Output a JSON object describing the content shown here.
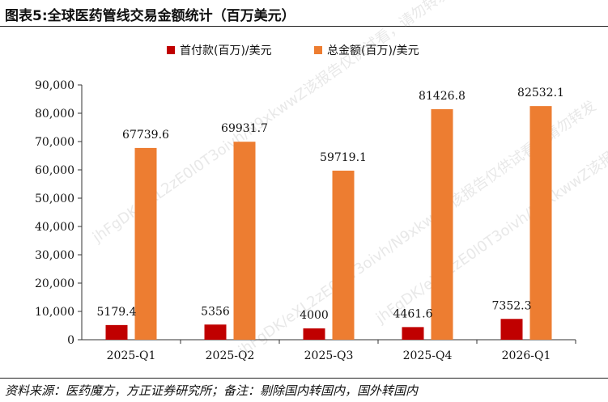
{
  "header": {
    "title": "图表5:全球医药管线交易金额统计（百万美元）"
  },
  "footer": {
    "source": "资料来源：医药魔方，方正证券研究所；备注：剔除国内转国内，国外转国内"
  },
  "watermark": {
    "text_1": "jhFgDK/eXL2zE0l0T3oivh/N9xkwwZ该报告仅供试看，请勿转发",
    "text_2": "jhFgDK/eXL2zE0l0T3oivh/N9xkwwZ该报告仅供试看，请勿转发",
    "text_3": "jhFgDK/eXL2zE0l0T3oivh/N9xkwwZ该报告仅供试看，请勿转发"
  },
  "chart_data": {
    "type": "bar",
    "title": "",
    "xlabel": "",
    "ylabel": "",
    "categories": [
      "2025-Q1",
      "2025-Q2",
      "2025-Q3",
      "2025-Q4",
      "2026-Q1"
    ],
    "series": [
      {
        "name": "首付款(百万)/美元",
        "color": "#c00000",
        "values": [
          5179.4,
          5356,
          4000,
          4461.6,
          7352.3
        ],
        "labels": [
          "5179.4",
          "5356",
          "4000",
          "4461.6",
          "7352.3"
        ]
      },
      {
        "name": "总金额(百万)/美元",
        "color": "#ed7d31",
        "values": [
          67739.6,
          69931.7,
          59719.1,
          81426.8,
          82532.1
        ],
        "labels": [
          "67739.6",
          "69931.7",
          "59719.1",
          "81426.8",
          "82532.1"
        ]
      }
    ],
    "ylim": [
      0,
      90000
    ],
    "yticks": [
      0,
      10000,
      20000,
      30000,
      40000,
      50000,
      60000,
      70000,
      80000,
      90000
    ],
    "ytick_labels": [
      "0",
      "10,000",
      "20,000",
      "30,000",
      "40,000",
      "50,000",
      "60,000",
      "70,000",
      "80,000",
      "90,000"
    ],
    "legend_position": "top-center",
    "grid": false,
    "data_labels": true
  }
}
